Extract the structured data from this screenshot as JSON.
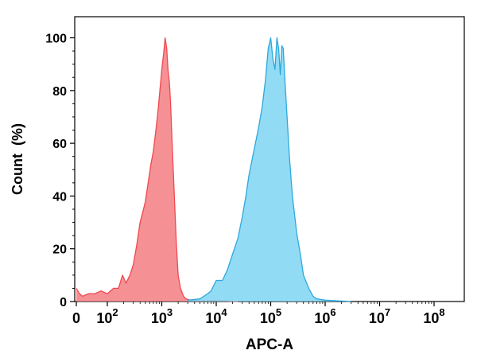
{
  "chart_data": {
    "type": "area",
    "title": "",
    "xlabel": "APC-A",
    "ylabel": "Count  (%)",
    "x_scale": "biexponential (linear near 0, log10 above 10^2)",
    "xlim": [
      0,
      100000000
    ],
    "ylim": [
      0,
      108
    ],
    "y_ticks": [
      0,
      20,
      40,
      60,
      80,
      100
    ],
    "y_tick_labels": [
      "0",
      "20",
      "40",
      "60",
      "80",
      "100"
    ],
    "x_ticks": [
      {
        "value": 0,
        "base": "0",
        "exp": ""
      },
      {
        "value": 100,
        "base": "10",
        "exp": "2"
      },
      {
        "value": 1000,
        "base": "10",
        "exp": "3"
      },
      {
        "value": 10000,
        "base": "10",
        "exp": "4"
      },
      {
        "value": 100000,
        "base": "10",
        "exp": "5"
      },
      {
        "value": 1000000,
        "base": "10",
        "exp": "6"
      },
      {
        "value": 10000000,
        "base": "10",
        "exp": "7"
      },
      {
        "value": 100000000,
        "base": "10",
        "exp": "8"
      }
    ],
    "grid": false,
    "legend": "none",
    "series": [
      {
        "color": "#f0484f",
        "fill": "#f37e82",
        "x": [
          0,
          10,
          20,
          40,
          60,
          80,
          100,
          130,
          160,
          190,
          220,
          260,
          300,
          350,
          400,
          450,
          500,
          560,
          630,
          700,
          780,
          860,
          940,
          1000,
          1080,
          1150,
          1230,
          1300,
          1380,
          1450,
          1550,
          1700,
          1850,
          2000,
          2200,
          2500,
          2800,
          3200,
          4000,
          5000,
          7000,
          10000,
          15000,
          25000
        ],
        "y": [
          5,
          3,
          2,
          3,
          3,
          4,
          3,
          5,
          5,
          10,
          7,
          10,
          14,
          22,
          30,
          34,
          38,
          45,
          52,
          57,
          65,
          73,
          82,
          88,
          94,
          100,
          96,
          88,
          83,
          75,
          60,
          40,
          22,
          10,
          5,
          2,
          1,
          0.6,
          0.4,
          0.3,
          0.2,
          0.4,
          0.2,
          0
        ]
      },
      {
        "color": "#2ea8dc",
        "fill": "#7fd5f3",
        "x": [
          3000,
          5000,
          7000,
          8000,
          10000,
          13000,
          16000,
          20000,
          25000,
          30000,
          35000,
          40000,
          50000,
          60000,
          70000,
          80000,
          90000,
          100000,
          110000,
          120000,
          130000,
          140000,
          150000,
          160000,
          170000,
          180000,
          200000,
          220000,
          250000,
          300000,
          350000,
          400000,
          500000,
          600000,
          700000,
          1000000,
          3000000
        ],
        "y": [
          0.5,
          1,
          3,
          4,
          8,
          8,
          12,
          18,
          24,
          32,
          40,
          48,
          58,
          66,
          74,
          84,
          96,
          100,
          92,
          88,
          100,
          96,
          86,
          97,
          96,
          86,
          70,
          55,
          40,
          26,
          18,
          10,
          5,
          2,
          1,
          0.5,
          0
        ]
      }
    ]
  }
}
